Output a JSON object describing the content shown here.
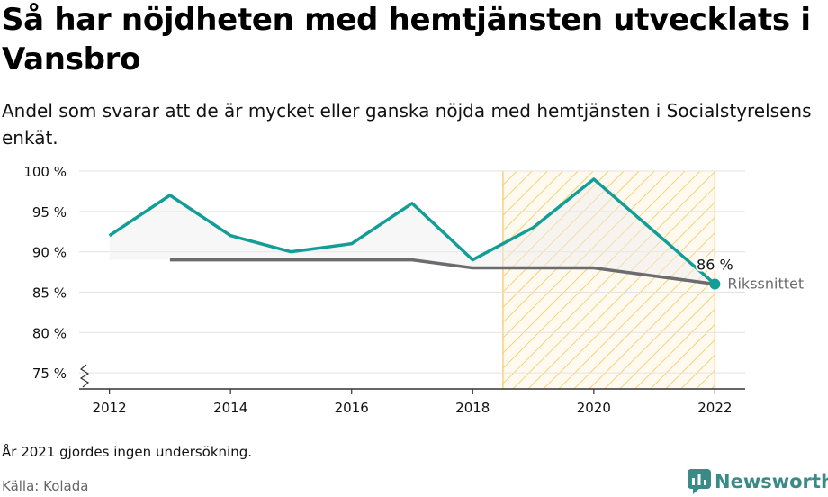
{
  "header": {
    "title": "Så har nöjdheten med hemtjänsten utvecklats i Vansbro",
    "subtitle": "Andel som svarar att de är mycket eller ganska nöjda med hemtjänsten i Socialstyrelsens enkät."
  },
  "footer": {
    "note": "År 2021 gjordes ingen undersökning.",
    "source": "Källa: Kolada",
    "brand": "Newsworthy"
  },
  "colors": {
    "local": "#129e97",
    "national": "#6b6b70",
    "highlight": "#f5d27a",
    "grid": "#e3e3e3"
  },
  "chart_data": {
    "type": "line",
    "x_ticks": [
      "2012",
      "2014",
      "2016",
      "2018",
      "2020",
      "2022"
    ],
    "x_tick_values": [
      2012,
      2014,
      2016,
      2018,
      2020,
      2022
    ],
    "y_ticks": [
      "75 %",
      "80 %",
      "85 %",
      "90 %",
      "95 %",
      "100 %"
    ],
    "y_tick_values": [
      75,
      80,
      85,
      90,
      95,
      100
    ],
    "xlim": [
      2011.5,
      2022.5
    ],
    "ylim": [
      73,
      100
    ],
    "y_axis_break": true,
    "grid": true,
    "highlight_range": [
      2018.5,
      2022
    ],
    "series": [
      {
        "key": "local",
        "x": [
          2012,
          2013,
          2014,
          2015,
          2016,
          2017,
          2018,
          2019,
          2020,
          2022
        ],
        "values": [
          92,
          97,
          92,
          90,
          91,
          96,
          89,
          93,
          99,
          86
        ]
      },
      {
        "key": "national",
        "name": "Rikssnittet",
        "x": [
          2013,
          2014,
          2015,
          2016,
          2017,
          2018,
          2019,
          2020,
          2022
        ],
        "values": [
          89,
          89,
          89,
          89,
          89,
          88,
          88,
          88,
          86
        ]
      }
    ],
    "end_label": "86 %"
  }
}
